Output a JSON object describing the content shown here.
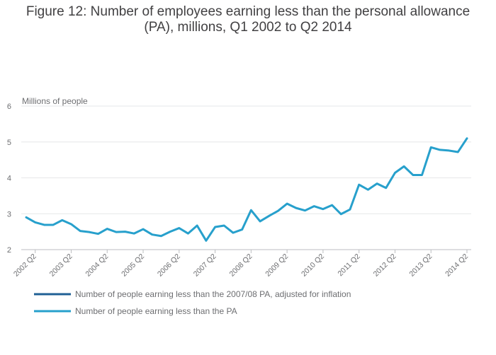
{
  "chart_data": {
    "type": "line",
    "title_line1": "Figure 12: Number of employees earning less than the personal allowance",
    "title_line2": "(PA), millions, Q1 2002 to Q2 2014",
    "ylabel": "Millions of people",
    "xlabel": "",
    "ylim": [
      2,
      6
    ],
    "yticks": [
      2,
      3,
      4,
      5,
      6
    ],
    "xtick_labels": [
      "2002 Q2",
      "2003 Q2",
      "2004 Q2",
      "2005 Q2",
      "2006 Q2",
      "2007 Q2",
      "2008 Q2",
      "2009 Q2",
      "2010 Q2",
      "2011 Q2",
      "2012 Q2",
      "2013 Q2",
      "2014 Q2"
    ],
    "grid": true,
    "legend_position": "bottom-left",
    "series": [
      {
        "name": "Number of people earning less than the 2007/08 PA, adjusted for inflation",
        "color": "#206095",
        "values": []
      },
      {
        "name": "Number of people earning less than the PA",
        "color": "#27a0cc",
        "values": [
          2.9,
          2.76,
          2.69,
          2.69,
          2.82,
          2.71,
          2.52,
          2.49,
          2.44,
          2.58,
          2.49,
          2.5,
          2.45,
          2.57,
          2.42,
          2.38,
          2.5,
          2.6,
          2.45,
          2.67,
          2.25,
          2.63,
          2.67,
          2.47,
          2.56,
          3.1,
          2.79,
          2.94,
          3.08,
          3.28,
          3.16,
          3.09,
          3.21,
          3.13,
          3.24,
          2.99,
          3.12,
          3.81,
          3.67,
          3.84,
          3.72,
          4.14,
          4.32,
          4.08,
          4.08,
          4.85,
          4.78,
          4.76,
          4.72,
          5.1
        ]
      }
    ]
  }
}
